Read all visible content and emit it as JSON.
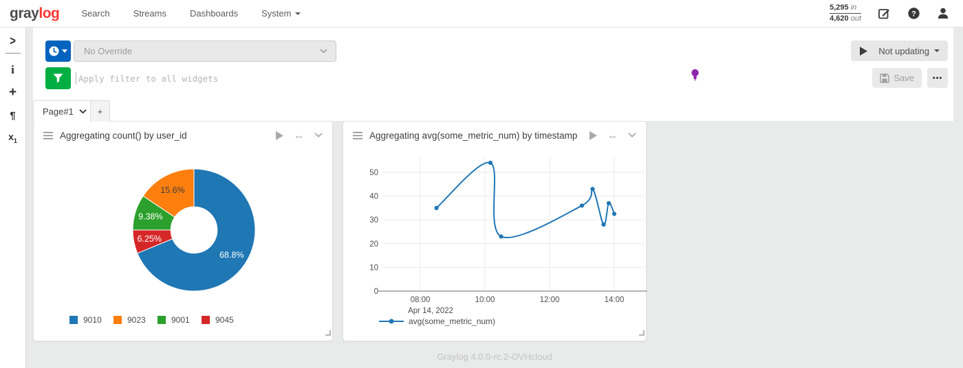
{
  "navbar": {
    "logo": {
      "part1": "gray",
      "part2": "log"
    },
    "items": [
      {
        "label": "Search"
      },
      {
        "label": "Streams"
      },
      {
        "label": "Dashboards"
      },
      {
        "label": "System"
      }
    ],
    "throughput": {
      "in_value": "5,295",
      "in_unit": "in",
      "out_value": "4,620",
      "out_unit": "out"
    },
    "icons": [
      "edit-icon",
      "help-icon",
      "user-icon"
    ]
  },
  "sidebar": {
    "icons": [
      {
        "name": "expand-icon",
        "glyph": ">"
      },
      {
        "name": "info-icon",
        "glyph": "i"
      },
      {
        "name": "add-icon",
        "glyph": "+"
      },
      {
        "name": "paragraph-icon",
        "glyph": "¶"
      },
      {
        "name": "variable-icon",
        "glyph": "x",
        "sub": "1"
      }
    ]
  },
  "query": {
    "time_range_value": "No Override",
    "filter_placeholder": "Apply filter to all widgets",
    "not_updating_label": "Not updating",
    "save_label": "Save",
    "more_label": "•••",
    "accent_blue": "#0063be",
    "accent_green": "#00ae42",
    "bulb_color": "#8e24aa"
  },
  "tabs": {
    "active_label": "Page#1",
    "add_label": "+"
  },
  "chart_data": [
    {
      "type": "pie",
      "title": "Aggregating count() by user_id",
      "donut_hole": 0.38,
      "slices": [
        {
          "label": "9010",
          "value": 68.8,
          "pct_label": "68.8%",
          "color": "#1f77b4",
          "text_color": "#ffffff"
        },
        {
          "label": "9045",
          "value": 6.25,
          "pct_label": "6.25%",
          "color": "#d62728",
          "text_color": "#ffffff"
        },
        {
          "label": "9001",
          "value": 9.38,
          "pct_label": "9.38%",
          "color": "#2ca02c",
          "text_color": "#ffffff"
        },
        {
          "label": "9023",
          "value": 15.6,
          "pct_label": "15.6%",
          "color": "#ff7f0e",
          "text_color": "#3d3d3d"
        }
      ],
      "legend": [
        {
          "label": "9010",
          "color": "#1f77b4"
        },
        {
          "label": "9023",
          "color": "#ff7f0e"
        },
        {
          "label": "9001",
          "color": "#2ca02c"
        },
        {
          "label": "9045",
          "color": "#d62728"
        }
      ],
      "legend_position": "bottom"
    },
    {
      "type": "line",
      "title": "Aggregating avg(some_metric_num) by timestamp",
      "mode": "spline+markers",
      "series": [
        {
          "name": "avg(some_metric_num)",
          "color": "#1f77b4",
          "points": [
            {
              "time": "08:30",
              "hour": 8.5,
              "value": 35
            },
            {
              "time": "10:10",
              "hour": 10.17,
              "value": 54
            },
            {
              "time": "10:30",
              "hour": 10.5,
              "value": 23
            },
            {
              "time": "13:00",
              "hour": 13.0,
              "value": 36
            },
            {
              "time": "13:20",
              "hour": 13.33,
              "value": 43
            },
            {
              "time": "13:40",
              "hour": 13.67,
              "value": 28
            },
            {
              "time": "13:50",
              "hour": 13.83,
              "value": 37
            },
            {
              "time": "14:00",
              "hour": 14.0,
              "value": 32.5
            }
          ]
        }
      ],
      "x_ticks": [
        {
          "label": "08:00",
          "hour": 8
        },
        {
          "label": "10:00",
          "hour": 10
        },
        {
          "label": "12:00",
          "hour": 12
        },
        {
          "label": "14:00",
          "hour": 14
        }
      ],
      "x_axis_subtitle": "Apr 14, 2022",
      "y_ticks": [
        0,
        10,
        20,
        30,
        40,
        50
      ],
      "ylim": [
        0,
        56
      ],
      "grid": true,
      "legend_position": "bottom-left"
    }
  ],
  "footer": {
    "version": "Graylog 4.0.0-rc.2-OVHcloud"
  }
}
